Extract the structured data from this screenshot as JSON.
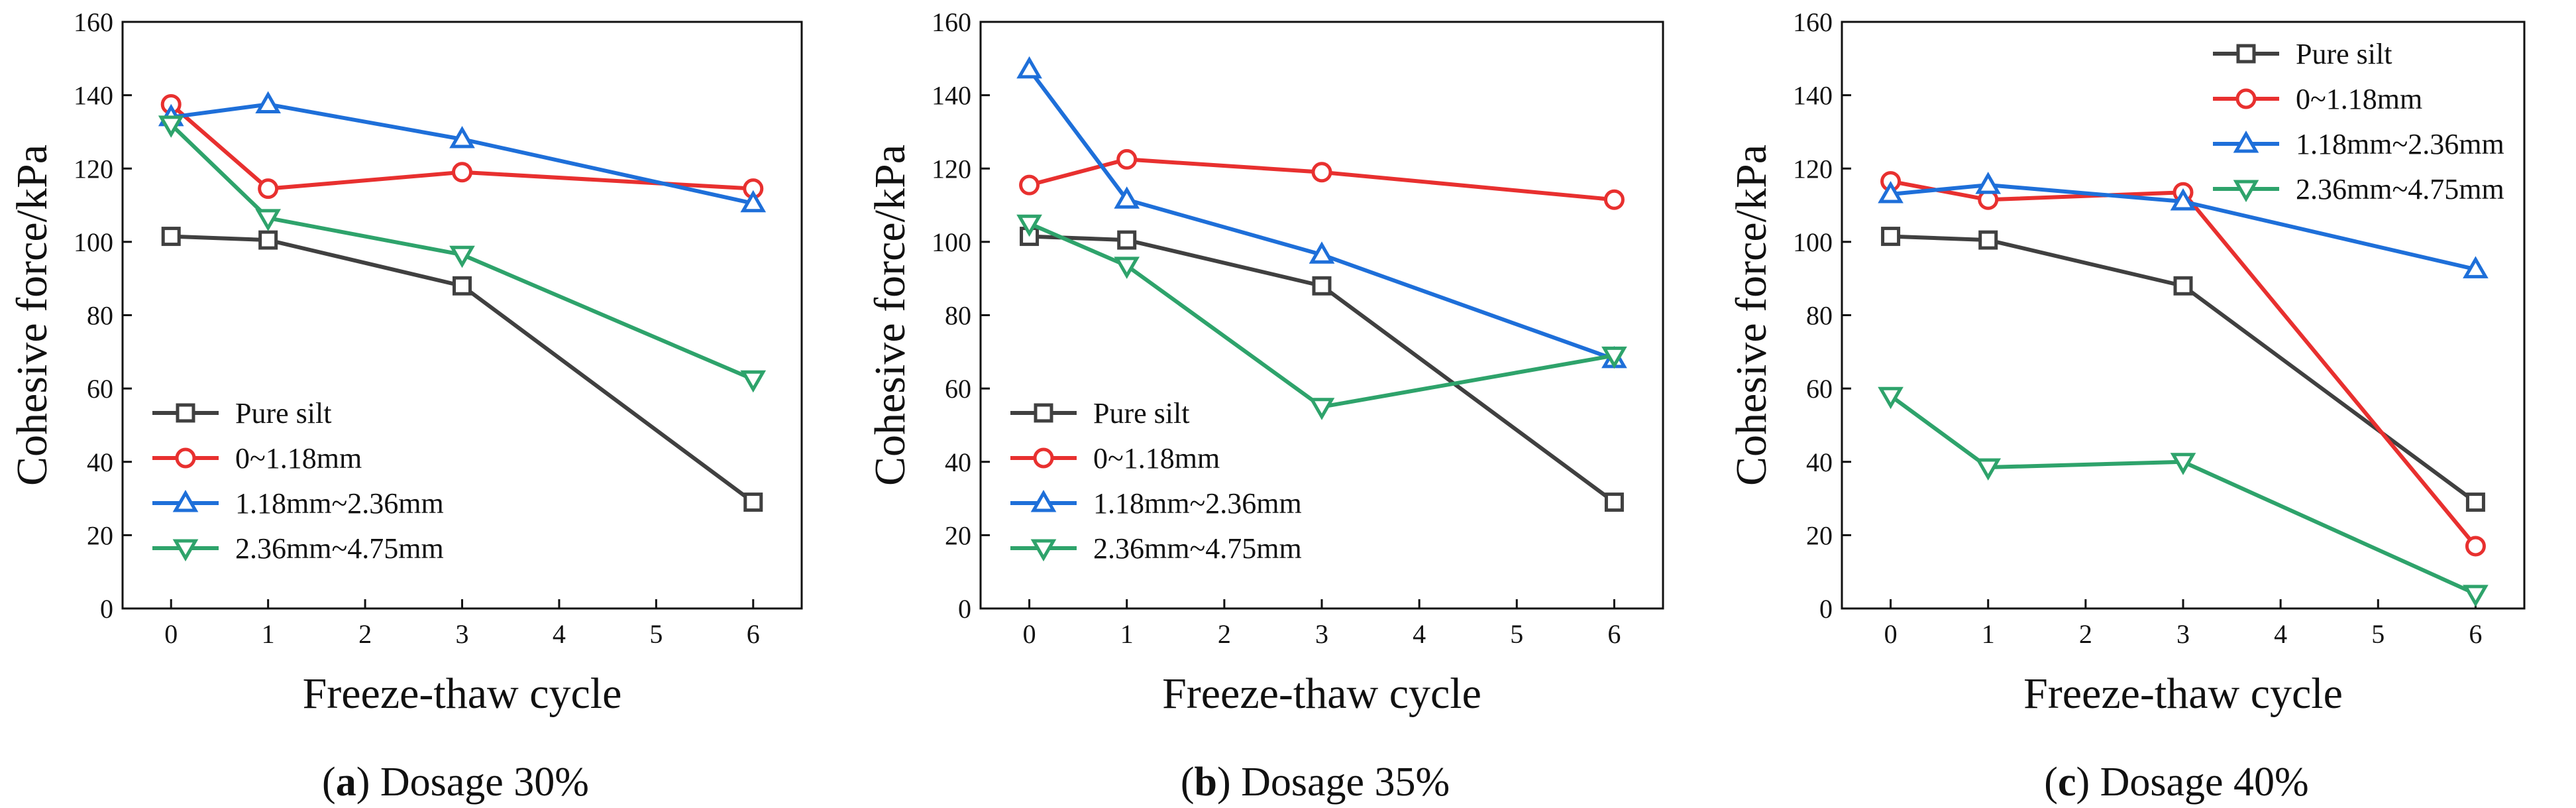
{
  "chart_data": [
    {
      "type": "line",
      "caption_label": "a",
      "caption_text": "Dosage 30%",
      "xlabel": "Freeze-thaw cycle",
      "ylabel": "Cohesive force/kPa",
      "xlim": [
        -0.5,
        6.5
      ],
      "ylim": [
        0,
        160
      ],
      "xticks": [
        0,
        1,
        2,
        3,
        4,
        5,
        6
      ],
      "yticks": [
        0,
        20,
        40,
        60,
        80,
        100,
        120,
        140,
        160
      ],
      "x": [
        0,
        1,
        3,
        6
      ],
      "legend_position": "lower-left",
      "series": [
        {
          "name": "Pure silt",
          "values": [
            101.5,
            100.5,
            88,
            29
          ],
          "color": "#404040",
          "marker": "square"
        },
        {
          "name": "0~1.18mm",
          "values": [
            137.5,
            114.5,
            119,
            114.5
          ],
          "color": "#e8302f",
          "marker": "circle"
        },
        {
          "name": "1.18mm~2.36mm",
          "values": [
            134,
            137.5,
            128,
            110.5
          ],
          "color": "#1e6fd9",
          "marker": "triangle-up"
        },
        {
          "name": "2.36mm~4.75mm",
          "values": [
            132,
            106.5,
            96.5,
            62.5
          ],
          "color": "#2ea36b",
          "marker": "triangle-down"
        }
      ]
    },
    {
      "type": "line",
      "caption_label": "b",
      "caption_text": "Dosage 35%",
      "xlabel": "Freeze-thaw cycle",
      "ylabel": "Cohesive force/kPa",
      "xlim": [
        -0.5,
        6.5
      ],
      "ylim": [
        0,
        160
      ],
      "xticks": [
        0,
        1,
        2,
        3,
        4,
        5,
        6
      ],
      "yticks": [
        0,
        20,
        40,
        60,
        80,
        100,
        120,
        140,
        160
      ],
      "x": [
        0,
        1,
        3,
        6
      ],
      "legend_position": "lower-left",
      "series": [
        {
          "name": "Pure silt",
          "values": [
            101.5,
            100.5,
            88,
            29
          ],
          "color": "#404040",
          "marker": "square"
        },
        {
          "name": "0~1.18mm",
          "values": [
            115.5,
            122.5,
            119,
            111.5
          ],
          "color": "#e8302f",
          "marker": "circle"
        },
        {
          "name": "1.18mm~2.36mm",
          "values": [
            147,
            111.5,
            96.5,
            68
          ],
          "color": "#1e6fd9",
          "marker": "triangle-up"
        },
        {
          "name": "2.36mm~4.75mm",
          "values": [
            105,
            93.5,
            55,
            69
          ],
          "color": "#2ea36b",
          "marker": "triangle-down"
        }
      ]
    },
    {
      "type": "line",
      "caption_label": "c",
      "caption_text": "Dosage 40%",
      "xlabel": "Freeze-thaw cycle",
      "ylabel": "Cohesive force/kPa",
      "xlim": [
        -0.5,
        6.5
      ],
      "ylim": [
        0,
        160
      ],
      "xticks": [
        0,
        1,
        2,
        3,
        4,
        5,
        6
      ],
      "yticks": [
        0,
        20,
        40,
        60,
        80,
        100,
        120,
        140,
        160
      ],
      "x": [
        0,
        1,
        3,
        6
      ],
      "legend_position": "top-right",
      "series": [
        {
          "name": "Pure silt",
          "values": [
            101.5,
            100.5,
            88,
            29
          ],
          "color": "#404040",
          "marker": "square"
        },
        {
          "name": "0~1.18mm",
          "values": [
            116.5,
            111.5,
            113.5,
            17
          ],
          "color": "#e8302f",
          "marker": "circle"
        },
        {
          "name": "1.18mm~2.36mm",
          "values": [
            113,
            115.5,
            111,
            92.5
          ],
          "color": "#1e6fd9",
          "marker": "triangle-up"
        },
        {
          "name": "2.36mm~4.75mm",
          "values": [
            58,
            38.5,
            40,
            4
          ],
          "color": "#2ea36b",
          "marker": "triangle-down"
        }
      ]
    }
  ]
}
